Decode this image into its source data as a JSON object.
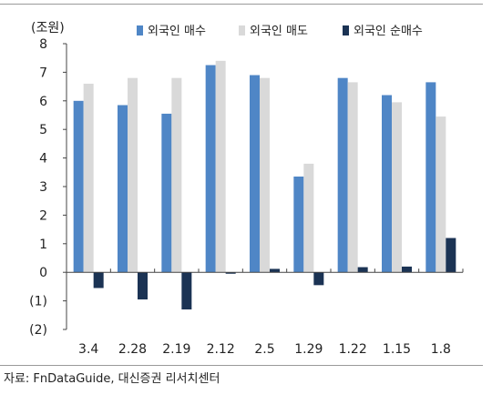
{
  "source_note": "자료: FnDataGuide, 대신증권 리서치센터",
  "chart_data": {
    "type": "bar",
    "unit_label": "(조원)",
    "categories": [
      "3.4",
      "2.28",
      "2.19",
      "2.12",
      "2.5",
      "1.29",
      "1.22",
      "1.15",
      "1.8"
    ],
    "series": [
      {
        "name": "외국인 매수",
        "color": "#4f86c6",
        "values": [
          6.0,
          5.85,
          5.55,
          7.25,
          6.9,
          3.35,
          6.8,
          6.2,
          6.65
        ]
      },
      {
        "name": "외국인 매도",
        "color": "#d9d9d9",
        "values": [
          6.6,
          6.8,
          6.8,
          7.4,
          6.8,
          3.8,
          6.65,
          5.95,
          5.45
        ]
      },
      {
        "name": "외국인 순매수",
        "color": "#1b3354",
        "values": [
          -0.55,
          -0.95,
          -1.3,
          -0.05,
          0.12,
          -0.45,
          0.18,
          0.2,
          1.2
        ]
      }
    ],
    "y_tick_labels": [
      "(2)",
      "(1)",
      "0",
      "1",
      "2",
      "3",
      "4",
      "5",
      "6",
      "7",
      "8"
    ],
    "ylim": [
      -2,
      8
    ],
    "grid": false,
    "legend_position": "top"
  }
}
